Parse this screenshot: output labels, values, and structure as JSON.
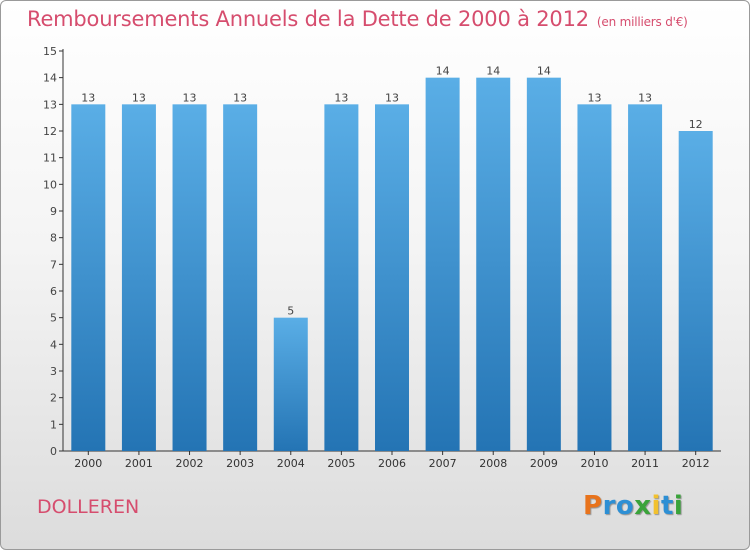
{
  "chart_data": {
    "type": "bar",
    "title": "Remboursements Annuels de la Dette de 2000 à 2012",
    "subtitle": "(en milliers d'€)",
    "categories": [
      "2000",
      "2001",
      "2002",
      "2003",
      "2004",
      "2005",
      "2006",
      "2007",
      "2008",
      "2009",
      "2010",
      "2011",
      "2012"
    ],
    "values": [
      13,
      13,
      13,
      13,
      5,
      13,
      13,
      14,
      14,
      14,
      13,
      13,
      12
    ],
    "ylim": [
      0,
      15
    ],
    "yticks": [
      0,
      1,
      2,
      3,
      4,
      5,
      6,
      7,
      8,
      9,
      10,
      11,
      12,
      13,
      14,
      15
    ],
    "grid": false,
    "bar_color_top": "#5aaee6",
    "bar_color_bottom": "#2474b4"
  },
  "commune": "DOLLEREN",
  "logo": {
    "letters": [
      "P",
      "r",
      "o",
      "x",
      "i",
      "t",
      "i"
    ],
    "colors": [
      "#e8731c",
      "#2d8fd4",
      "#2d8fd4",
      "#3aa33a",
      "#f2c12e",
      "#2d8fd4",
      "#3aa33a"
    ]
  },
  "colors": {
    "title": "#d64d6e",
    "axis": "#333333"
  }
}
